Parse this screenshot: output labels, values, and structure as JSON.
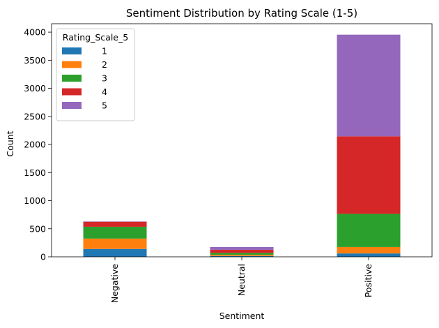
{
  "chart_data": {
    "type": "bar",
    "stacked": true,
    "title": "Sentiment Distribution by Rating Scale (1-5)",
    "xlabel": "Sentiment",
    "ylabel": "Count",
    "categories": [
      "Negative",
      "Neutral",
      "Positive"
    ],
    "ylim": [
      0,
      4150
    ],
    "yticks": [
      0,
      500,
      1000,
      1500,
      2000,
      2500,
      3000,
      3500,
      4000
    ],
    "grid": false,
    "legend": {
      "title": "Rating_Scale_5",
      "placement": "top-left"
    },
    "series": [
      {
        "name": "1",
        "color": "#1f77b4",
        "values": [
          140,
          15,
          60
        ]
      },
      {
        "name": "2",
        "color": "#ff7f0e",
        "values": [
          185,
          20,
          115
        ]
      },
      {
        "name": "3",
        "color": "#2ca02c",
        "values": [
          210,
          35,
          590
        ]
      },
      {
        "name": "4",
        "color": "#d62728",
        "values": [
          90,
          55,
          1380
        ]
      },
      {
        "name": "5",
        "color": "#9467bd",
        "values": [
          5,
          50,
          1810
        ]
      }
    ]
  }
}
